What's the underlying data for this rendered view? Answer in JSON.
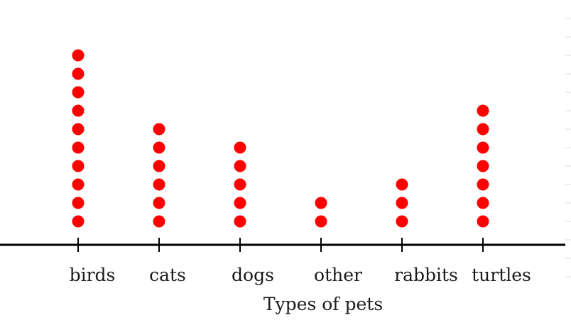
{
  "chart_data": {
    "type": "scatter",
    "subtype": "dot plot",
    "categories": [
      "birds",
      "cats",
      "dogs",
      "other",
      "rabbits",
      "turtles"
    ],
    "values": [
      10,
      6,
      5,
      2,
      3,
      7
    ],
    "xlabel": "Types of pets",
    "dot_color": "#ff0000",
    "axis_color": "#000000"
  }
}
